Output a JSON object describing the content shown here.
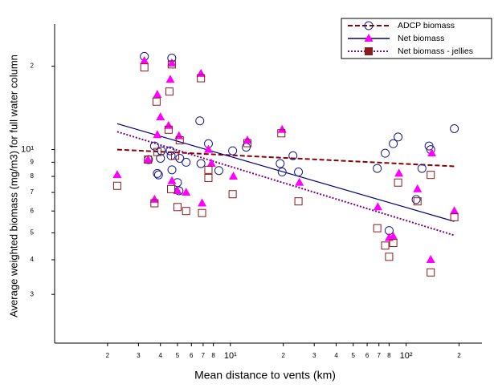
{
  "chart_data": {
    "type": "scatter",
    "x_label": "Mean distance to vents (km)",
    "y_label": "Average weighted biomass (mg/m3) for full water column",
    "log_x": true,
    "log_y": true,
    "legend_position": "top-right",
    "xlim": [
      1,
      270
    ],
    "ylim": [
      2,
      28.4
    ],
    "xticks": [
      2,
      3,
      4,
      5,
      6,
      7,
      8,
      {
        "value": 10,
        "label": "10¹"
      },
      {
        "value": 20,
        "label": "2"
      },
      {
        "value": 30,
        "label": "3"
      },
      {
        "value": 40,
        "label": "4"
      },
      {
        "value": 50,
        "label": "5"
      },
      {
        "value": 60,
        "label": "6"
      },
      {
        "value": 70,
        "label": "7"
      },
      {
        "value": 80,
        "label": "8"
      },
      {
        "value": 100,
        "label": "10²"
      },
      {
        "value": 200,
        "label": "2"
      }
    ],
    "yticks": [
      3,
      4,
      5,
      6,
      7,
      8,
      9,
      {
        "value": 10,
        "label": "10¹"
      },
      {
        "value": 20,
        "label": "2"
      }
    ],
    "series": [
      {
        "name": "ADCP biomass",
        "marker": "circle",
        "color": "#1a1a8c",
        "trend_color": "#8b0000",
        "trend_style": "dashed",
        "x": [
          3.24,
          4.64,
          6.7,
          7.5,
          3.42,
          3.7,
          3.84,
          3.9,
          4.0,
          4.05,
          4.55,
          4.6,
          4.65,
          5.0,
          5.1,
          5.15,
          5.6,
          6.8,
          8.6,
          10.3,
          12.3,
          19.2,
          19.7,
          22.7,
          24.4,
          68.5,
          76,
          84.5,
          90,
          123,
          135,
          138,
          114,
          80,
          188
        ],
        "values": [
          21.7,
          21.4,
          12.7,
          10.5,
          9.2,
          10.3,
          8.2,
          8.1,
          9.3,
          9.9,
          9.9,
          9.5,
          8.45,
          7.6,
          7.1,
          9.3,
          9.0,
          8.9,
          8.4,
          9.9,
          10.2,
          8.9,
          8.3,
          9.5,
          8.3,
          8.55,
          9.7,
          10.5,
          11.1,
          8.55,
          10.3,
          10,
          6.6,
          5.1,
          11.9
        ],
        "trend_x": [
          2.27,
          188
        ],
        "trend_y": [
          10,
          8.7
        ]
      },
      {
        "name": "Net biomass",
        "marker": "triangle",
        "color": "#ff00ff",
        "trend_color": "#000080",
        "trend_style": "solid",
        "x": [
          3.24,
          4.64,
          4.55,
          3.84,
          4.0,
          4.45,
          5.1,
          6.8,
          7.5,
          3.84,
          3.4,
          2.27,
          3.7,
          4.65,
          5.0,
          5.6,
          6.9,
          7.8,
          10.4,
          12.5,
          19.7,
          24.7,
          69,
          80,
          84.5,
          91,
          116,
          140,
          138,
          188
        ],
        "values": [
          20.9,
          20.5,
          17.9,
          15.8,
          13.1,
          12.2,
          11.2,
          18.8,
          10,
          11.3,
          9.2,
          8.1,
          6.6,
          7.7,
          7.1,
          7.0,
          6.4,
          8.9,
          8.0,
          10.8,
          11.8,
          7.6,
          6.2,
          4.8,
          4.85,
          8.2,
          7.2,
          9.7,
          4.0,
          6.0
        ],
        "trend_x": [
          2.27,
          188
        ],
        "trend_y": [
          12.4,
          5.5
        ]
      },
      {
        "name": "Net biomass - jellies",
        "marker": "square",
        "color": "#8b1a1a",
        "trend_color": "#800080",
        "trend_style": "dotted",
        "x": [
          3.24,
          4.64,
          3.8,
          4.5,
          6.8,
          4.45,
          5.15,
          3.84,
          4.85,
          3.4,
          2.27,
          3.7,
          4.6,
          5.0,
          5.6,
          6.9,
          7.5,
          7.5,
          10.3,
          12.5,
          19.5,
          24.4,
          68.5,
          76,
          80,
          84.5,
          90,
          116,
          138,
          138,
          188
        ],
        "values": [
          19.8,
          20.3,
          14.9,
          16.2,
          18.1,
          11.8,
          10.8,
          9.8,
          9.5,
          9.2,
          7.4,
          6.4,
          7.2,
          6.2,
          6.0,
          5.9,
          7.9,
          8.45,
          6.9,
          10.55,
          11.45,
          6.5,
          5.2,
          4.5,
          4.1,
          4.6,
          7.6,
          6.5,
          8.1,
          3.6,
          5.7
        ],
        "trend_x": [
          2.27,
          188
        ],
        "trend_y": [
          11.6,
          4.9
        ]
      }
    ]
  }
}
